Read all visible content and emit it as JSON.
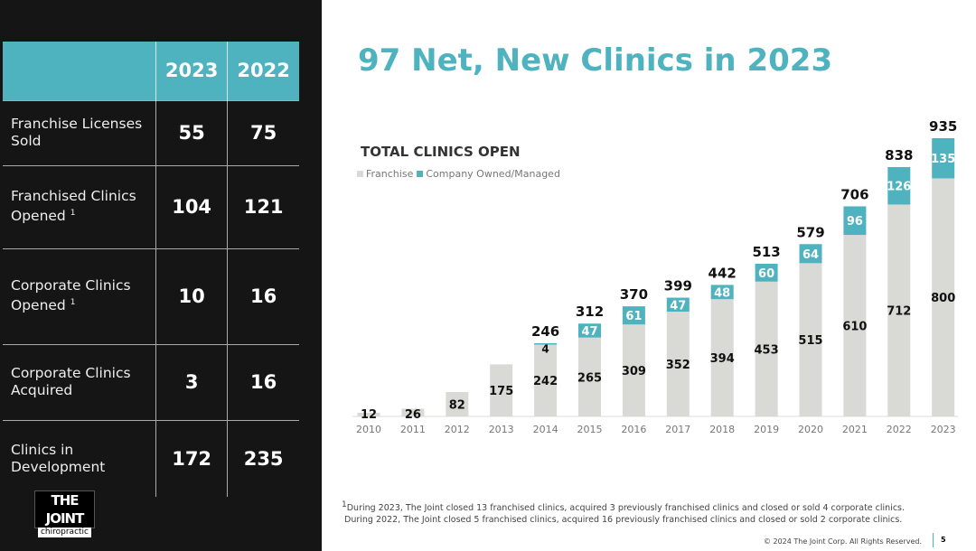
{
  "table": {
    "headers": [
      "",
      "2023",
      "2022"
    ],
    "rows": [
      {
        "label": "Franchise Licenses Sold",
        "sup": "",
        "v2023": "55",
        "v2022": "75"
      },
      {
        "label": "Franchised Clinics Opened",
        "sup": "1",
        "v2023": "104",
        "v2022": "121"
      },
      {
        "label": "Corporate Clinics Opened",
        "sup": "1",
        "v2023": "10",
        "v2022": "16"
      },
      {
        "label": "Corporate Clinics Acquired",
        "sup": "",
        "v2023": "3",
        "v2022": "16"
      },
      {
        "label": "Clinics in Development",
        "sup": "",
        "v2023": "172",
        "v2022": "235"
      }
    ]
  },
  "logo": {
    "line1": "THE JOINT",
    "line2": "chiropractic"
  },
  "title": "97 Net, New Clinics in 2023",
  "colors": {
    "accent": "#4fb3bf",
    "franchise": "#d9d9d6",
    "dark": "#151515"
  },
  "chart_data": {
    "type": "bar",
    "stacked": true,
    "title": "TOTAL CLINICS OPEN",
    "legend": "top-left",
    "categories": [
      "2010",
      "2011",
      "2012",
      "2013",
      "2014",
      "2015",
      "2016",
      "2017",
      "2018",
      "2019",
      "2020",
      "2021",
      "2022",
      "2023"
    ],
    "series": [
      {
        "name": "Franchise",
        "color": "#d9d9d6",
        "values": [
          12,
          26,
          82,
          175,
          242,
          265,
          309,
          352,
          394,
          453,
          515,
          610,
          712,
          800
        ]
      },
      {
        "name": "Company Owned/Managed",
        "color": "#4fb3bf",
        "values": [
          0,
          0,
          0,
          0,
          4,
          47,
          61,
          47,
          48,
          60,
          64,
          96,
          126,
          135
        ]
      }
    ],
    "totals": [
      12,
      26,
      82,
      175,
      246,
      312,
      370,
      399,
      442,
      513,
      579,
      706,
      838,
      935
    ],
    "ylim": [
      0,
      935
    ],
    "grid": false
  },
  "footnote": {
    "sup": "1",
    "line1": "During 2023, The Joint closed 13 franchised clinics, acquired 3 previously franchised clinics and closed or sold 4 corporate clinics.",
    "line2": "During 2022, The Joint closed 5 franchised clinics, acquired 16 previously franchised clinics and closed or sold 2 corporate clinics."
  },
  "copyright": "© 2024 The Joint Corp. All Rights Reserved.",
  "page": "5"
}
